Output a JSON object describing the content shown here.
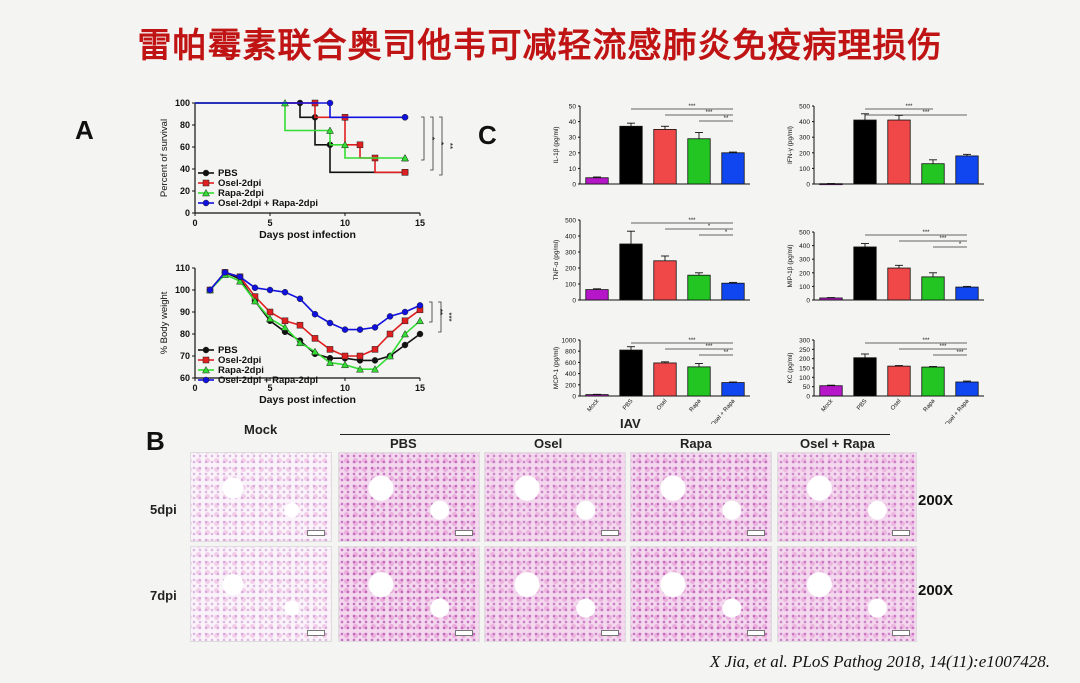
{
  "title": "雷帕霉素联合奥司他韦可减轻流感肺炎免疫病理损伤",
  "citation": "X Jia, et al.  PLoS Pathog 2018, 14(11):e1007428.",
  "panels": {
    "a": "A",
    "b": "B",
    "c": "C"
  },
  "chart_data": [
    {
      "id": "survival",
      "type": "line",
      "xlabel": "Days post infection",
      "ylabel": "Percent of survival",
      "xlim": [
        0,
        15
      ],
      "ylim": [
        0,
        100
      ],
      "xticks": [
        "0",
        "5",
        "10",
        "15"
      ],
      "yticks": [
        "0",
        "20",
        "40",
        "60",
        "80",
        "100"
      ],
      "significance": [
        "*",
        "*",
        "**"
      ],
      "series": [
        {
          "name": "PBS",
          "color": "#111111",
          "marker": "circle",
          "points": [
            [
              0,
              100
            ],
            [
              7,
              100
            ],
            [
              7,
              87
            ],
            [
              8,
              87
            ],
            [
              8,
              62
            ],
            [
              9,
              62
            ],
            [
              9,
              37
            ],
            [
              14,
              37
            ]
          ]
        },
        {
          "name": "Osel-2dpi",
          "color": "#e02020",
          "marker": "square",
          "points": [
            [
              0,
              100
            ],
            [
              8,
              100
            ],
            [
              8,
              87
            ],
            [
              10,
              87
            ],
            [
              10,
              62
            ],
            [
              11,
              62
            ],
            [
              11,
              50
            ],
            [
              12,
              50
            ],
            [
              12,
              37
            ],
            [
              14,
              37
            ]
          ]
        },
        {
          "name": "Rapa-2dpi",
          "color": "#33dd33",
          "marker": "triangle",
          "points": [
            [
              0,
              100
            ],
            [
              6,
              100
            ],
            [
              6,
              75
            ],
            [
              9,
              75
            ],
            [
              9,
              62
            ],
            [
              10,
              62
            ],
            [
              10,
              50
            ],
            [
              14,
              50
            ]
          ]
        },
        {
          "name": "Osel-2dpi + Rapa-2dpi",
          "color": "#1010e0",
          "marker": "circle",
          "points": [
            [
              0,
              100
            ],
            [
              9,
              100
            ],
            [
              9,
              87
            ],
            [
              14,
              87
            ]
          ]
        }
      ]
    },
    {
      "id": "body-weight",
      "type": "line",
      "xlabel": "Days post infection",
      "ylabel": "% Body weight",
      "xlim": [
        0,
        15
      ],
      "ylim": [
        60,
        110
      ],
      "xticks": [
        "0",
        "5",
        "10",
        "15"
      ],
      "yticks": [
        "60",
        "70",
        "80",
        "90",
        "100",
        "110"
      ],
      "significance": [
        "**",
        "***"
      ],
      "x": [
        1,
        2,
        3,
        4,
        5,
        6,
        7,
        8,
        9,
        10,
        11,
        12,
        13,
        14,
        15
      ],
      "series": [
        {
          "name": "PBS",
          "color": "#111111",
          "values": [
            100,
            108,
            105,
            95,
            86,
            81,
            77,
            71,
            69,
            69,
            68,
            68,
            70,
            75,
            80
          ]
        },
        {
          "name": "Osel-2dpi",
          "color": "#e02020",
          "values": [
            100,
            108,
            106,
            97,
            90,
            86,
            84,
            78,
            73,
            70,
            70,
            73,
            80,
            86,
            91
          ]
        },
        {
          "name": "Rapa-2dpi",
          "color": "#33dd33",
          "values": [
            100,
            107,
            104,
            95,
            87,
            83,
            76,
            72,
            67,
            66,
            64,
            64,
            70,
            80,
            86
          ]
        },
        {
          "name": "Osel-2dpi + Rapa-2dpi",
          "color": "#1010e0",
          "values": [
            100,
            108,
            106,
            101,
            100,
            99,
            96,
            89,
            85,
            82,
            82,
            83,
            88,
            90,
            93
          ]
        }
      ]
    },
    {
      "id": "il1b",
      "type": "bar",
      "ylabel": "IL-1β (pg/ml)",
      "ylim": [
        0,
        50
      ],
      "yticks": [
        "0",
        "10",
        "20",
        "30",
        "40",
        "50"
      ],
      "categories": [
        "Mock",
        "PBS",
        "Osel",
        "Rapa",
        "Osel + Rapa"
      ],
      "values": [
        4,
        37,
        35,
        29,
        20
      ],
      "errors": [
        0.5,
        2,
        2,
        4,
        0.5
      ],
      "significance": [
        "***",
        "***",
        "**"
      ],
      "show_xticks": false
    },
    {
      "id": "ifng",
      "type": "bar",
      "ylabel": "IFN-γ (pg/ml)",
      "ylim": [
        0,
        500
      ],
      "yticks": [
        "0",
        "100",
        "200",
        "300",
        "400",
        "500"
      ],
      "categories": [
        "Mock",
        "PBS",
        "Osel",
        "Rapa",
        "Osel + Rapa"
      ],
      "values": [
        2,
        410,
        410,
        130,
        180
      ],
      "errors": [
        1,
        40,
        30,
        25,
        10
      ],
      "significance": [
        "***",
        "***"
      ],
      "show_xticks": false
    },
    {
      "id": "tnfa",
      "type": "bar",
      "ylabel": "TNF-α (pg/ml)",
      "ylim": [
        0,
        500
      ],
      "yticks": [
        "0",
        "100",
        "200",
        "300",
        "400",
        "500"
      ],
      "categories": [
        "Mock",
        "PBS",
        "Osel",
        "Rapa",
        "Osel + Rapa"
      ],
      "values": [
        65,
        350,
        245,
        155,
        105
      ],
      "errors": [
        5,
        80,
        30,
        15,
        5
      ],
      "significance": [
        "***",
        "*",
        "*"
      ],
      "show_xticks": false
    },
    {
      "id": "mip1b",
      "type": "bar",
      "ylabel": "MIP-1β (pg/ml)",
      "ylim": [
        0,
        500
      ],
      "yticks": [
        "0",
        "100",
        "200",
        "300",
        "400",
        "500"
      ],
      "categories": [
        "Mock",
        "PBS",
        "Osel",
        "Rapa",
        "Osel + Rapa"
      ],
      "values": [
        15,
        390,
        235,
        170,
        95
      ],
      "errors": [
        3,
        25,
        20,
        30,
        5
      ],
      "significance": [
        "***",
        "***",
        "*"
      ],
      "show_xticks": false
    },
    {
      "id": "mcp1",
      "type": "bar",
      "ylabel": "MCP-1 (pg/ml)",
      "ylim": [
        0,
        1000
      ],
      "yticks": [
        "0",
        "200",
        "400",
        "600",
        "800",
        "1000"
      ],
      "categories": [
        "Mock",
        "PBS",
        "Osel",
        "Rapa",
        "Osel + Rapa"
      ],
      "values": [
        25,
        820,
        590,
        520,
        240
      ],
      "errors": [
        5,
        60,
        20,
        60,
        10
      ],
      "significance": [
        "***",
        "***",
        "**"
      ],
      "show_xticks": true
    },
    {
      "id": "kc",
      "type": "bar",
      "ylabel": "KC (pg/ml)",
      "ylim": [
        0,
        300
      ],
      "yticks": [
        "0",
        "50",
        "100",
        "150",
        "200",
        "250",
        "300"
      ],
      "categories": [
        "Mock",
        "PBS",
        "Osel",
        "Rapa",
        "Osel + Rapa"
      ],
      "values": [
        55,
        205,
        160,
        155,
        75
      ],
      "errors": [
        3,
        20,
        3,
        3,
        5
      ],
      "significance": [
        "***",
        "***",
        "***"
      ],
      "show_xticks": true
    }
  ],
  "bar_colors": [
    "#b516c8",
    "#000000",
    "#f04848",
    "#22c522",
    "#1046f0"
  ],
  "histology": {
    "group_label": "IAV",
    "columns": [
      "Mock",
      "PBS",
      "Osel",
      "Rapa",
      "Osel + Rapa"
    ],
    "rows": [
      {
        "label": "5dpi",
        "magnification": "200X"
      },
      {
        "label": "7dpi",
        "magnification": "200X"
      }
    ]
  }
}
